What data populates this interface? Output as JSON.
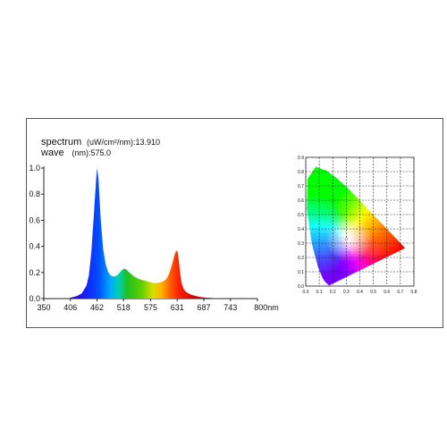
{
  "readouts": {
    "spectrum_name": "spectrum",
    "spectrum_unit": "(uW/cm²/nm):13.910",
    "wave_name": "wave",
    "wave_unit": "(nm):575.0"
  },
  "chart_data": [
    {
      "type": "area",
      "title": "",
      "xlabel": "",
      "ylabel": "",
      "x_tick_labels": [
        "350",
        "406",
        "462",
        "518",
        "575",
        "631",
        "687",
        "743",
        "800nm"
      ],
      "x_ticks": [
        350,
        406,
        462,
        518,
        575,
        631,
        687,
        743,
        800
      ],
      "y_tick_labels": [
        "0.0",
        "0.2",
        "0.4",
        "0.6",
        "0.8",
        "1.0"
      ],
      "y_ticks": [
        0,
        0.2,
        0.4,
        0.6,
        0.8,
        1.0
      ],
      "xlim": [
        350,
        800
      ],
      "ylim": [
        0,
        1.0
      ],
      "grid": false,
      "series": [
        {
          "x": [
            400,
            410,
            420,
            430,
            440,
            445,
            450,
            455,
            460,
            462,
            465,
            470,
            475,
            480,
            485,
            490,
            495,
            500,
            505,
            510,
            515,
            520,
            525,
            530,
            540,
            550,
            560,
            570,
            580,
            590,
            600,
            605,
            610,
            615,
            620,
            625,
            628,
            631,
            634,
            637,
            640,
            645,
            650,
            660,
            670,
            680,
            690,
            700,
            710,
            720,
            730,
            740,
            750
          ],
          "values": [
            0.0,
            0.01,
            0.02,
            0.04,
            0.1,
            0.18,
            0.35,
            0.62,
            0.9,
            1.0,
            0.92,
            0.6,
            0.38,
            0.27,
            0.21,
            0.18,
            0.17,
            0.17,
            0.18,
            0.2,
            0.22,
            0.23,
            0.22,
            0.2,
            0.17,
            0.15,
            0.14,
            0.13,
            0.12,
            0.12,
            0.13,
            0.14,
            0.16,
            0.2,
            0.26,
            0.33,
            0.36,
            0.37,
            0.3,
            0.2,
            0.12,
            0.07,
            0.05,
            0.03,
            0.02,
            0.012,
            0.008,
            0.005,
            0.003,
            0.002,
            0.001,
            0.0005,
            0.0
          ]
        }
      ]
    },
    {
      "type": "scatter",
      "title": "",
      "xlabel": "",
      "ylabel": "",
      "x_tick_labels": [
        "0.0",
        "0.1",
        "0.2",
        "0.3",
        "0.4",
        "0.5",
        "0.6",
        "0.7",
        "0.8"
      ],
      "x_ticks": [
        0,
        0.1,
        0.2,
        0.3,
        0.4,
        0.5,
        0.6,
        0.7,
        0.8
      ],
      "y_tick_labels": [
        "0.0",
        "0.1",
        "0.2",
        "0.3",
        "0.4",
        "0.5",
        "0.6",
        "0.7",
        "0.8",
        "0.9"
      ],
      "y_ticks": [
        0,
        0.1,
        0.2,
        0.3,
        0.4,
        0.5,
        0.6,
        0.7,
        0.8,
        0.9
      ],
      "xlim": [
        0,
        0.8
      ],
      "ylim": [
        0,
        0.9
      ],
      "grid": true,
      "points": [
        {
          "x": 0.3,
          "y": 0.33
        }
      ],
      "locus": {
        "x": [
          0.1741,
          0.1738,
          0.1736,
          0.1733,
          0.1726,
          0.1714,
          0.1689,
          0.1644,
          0.1566,
          0.144,
          0.1241,
          0.0913,
          0.0454,
          0.0082,
          0.0139,
          0.0743,
          0.1547,
          0.2296,
          0.3016,
          0.3731,
          0.4441,
          0.5125,
          0.5752,
          0.627,
          0.6658,
          0.6915,
          0.7079,
          0.719,
          0.726,
          0.73,
          0.7347
        ],
        "y": [
          0.005,
          0.0049,
          0.0049,
          0.0048,
          0.0048,
          0.0051,
          0.0069,
          0.0109,
          0.0177,
          0.0297,
          0.0578,
          0.1327,
          0.295,
          0.5384,
          0.7502,
          0.8338,
          0.8059,
          0.7543,
          0.6923,
          0.6245,
          0.5547,
          0.4866,
          0.4242,
          0.3725,
          0.334,
          0.3083,
          0.292,
          0.2809,
          0.274,
          0.27,
          0.2653
        ]
      }
    }
  ]
}
